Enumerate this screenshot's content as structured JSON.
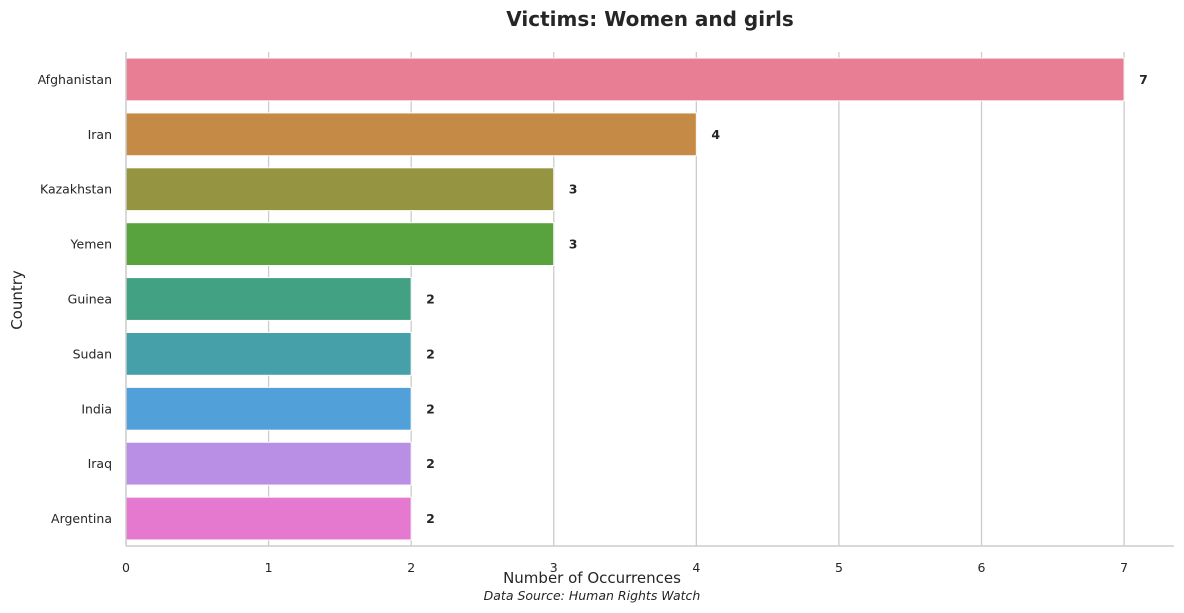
{
  "chart_data": {
    "type": "bar",
    "orientation": "horizontal",
    "title": "Victims: Women and girls",
    "xlabel": "Number of Occurrences",
    "ylabel": "Country",
    "source": "Data Source: Human Rights Watch",
    "categories": [
      "Afghanistan",
      "Iran",
      "Kazakhstan",
      "Yemen",
      "Guinea",
      "Sudan",
      "India",
      "Iraq",
      "Argentina"
    ],
    "values": [
      7,
      4,
      3,
      3,
      2,
      2,
      2,
      2,
      2
    ],
    "colors": [
      "#e87e93",
      "#c58b46",
      "#959541",
      "#58a33e",
      "#42a083",
      "#45a0a9",
      "#52a0da",
      "#b98fe6",
      "#e578cf"
    ],
    "xlim": [
      0,
      7.35
    ],
    "xticks": [
      0,
      1,
      2,
      3,
      4,
      5,
      6,
      7
    ],
    "grid": "vertical",
    "value_labels": true
  }
}
